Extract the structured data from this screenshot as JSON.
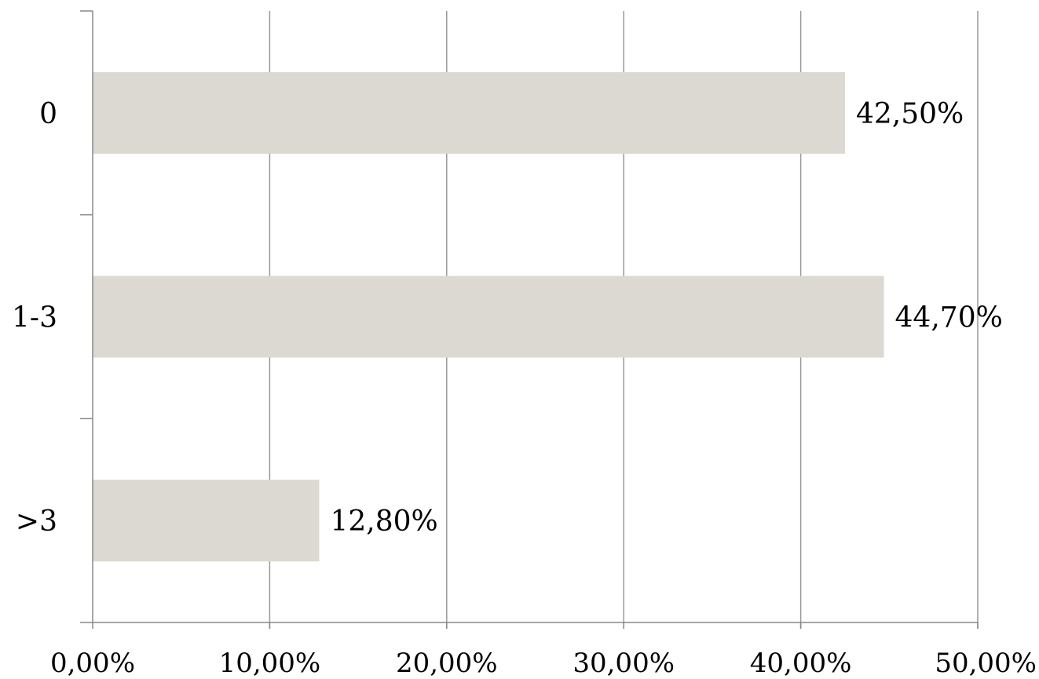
{
  "chart_data": {
    "type": "bar",
    "orientation": "horizontal",
    "categories": [
      "0",
      "1-3",
      ">3"
    ],
    "values": [
      42.5,
      44.7,
      12.8
    ],
    "value_labels": [
      "42,50%",
      "44,70%",
      "12,80%"
    ],
    "x_ticks": [
      0,
      10,
      20,
      30,
      40,
      50
    ],
    "x_tick_labels": [
      "0,00%",
      "10,00%",
      "20,00%",
      "30,00%",
      "40,00%",
      "50,00%"
    ],
    "xlim": [
      0,
      50
    ],
    "xlabel": "",
    "ylabel": "",
    "title": "",
    "grid": "vertical",
    "legend": "none",
    "colors": {
      "bar": "#dcd9d2",
      "grid": "#999999",
      "axis": "#888888",
      "text": "#000000"
    }
  }
}
